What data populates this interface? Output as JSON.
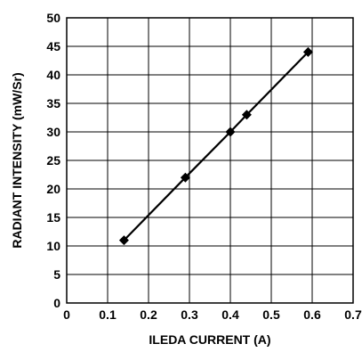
{
  "chart_data": {
    "type": "line",
    "title": "",
    "xlabel": "ILEDA CURRENT (A)",
    "ylabel": "RADIANT INTENSITY (mW/Sr)",
    "xlim": [
      0,
      0.7
    ],
    "ylim": [
      0,
      50
    ],
    "grid": true,
    "xticks": [
      "0",
      "0.1",
      "0.2",
      "0.3",
      "0.4",
      "0.5",
      "0.6",
      "0.7"
    ],
    "yticks": [
      "0",
      "5",
      "10",
      "15",
      "20",
      "25",
      "30",
      "35",
      "40",
      "45",
      "50"
    ],
    "series": [
      {
        "x": [
          0.14,
          0.29,
          0.4,
          0.44,
          0.59
        ],
        "y": [
          11,
          22,
          30,
          33,
          44
        ],
        "marker": "diamond",
        "color": "#000000"
      }
    ]
  }
}
